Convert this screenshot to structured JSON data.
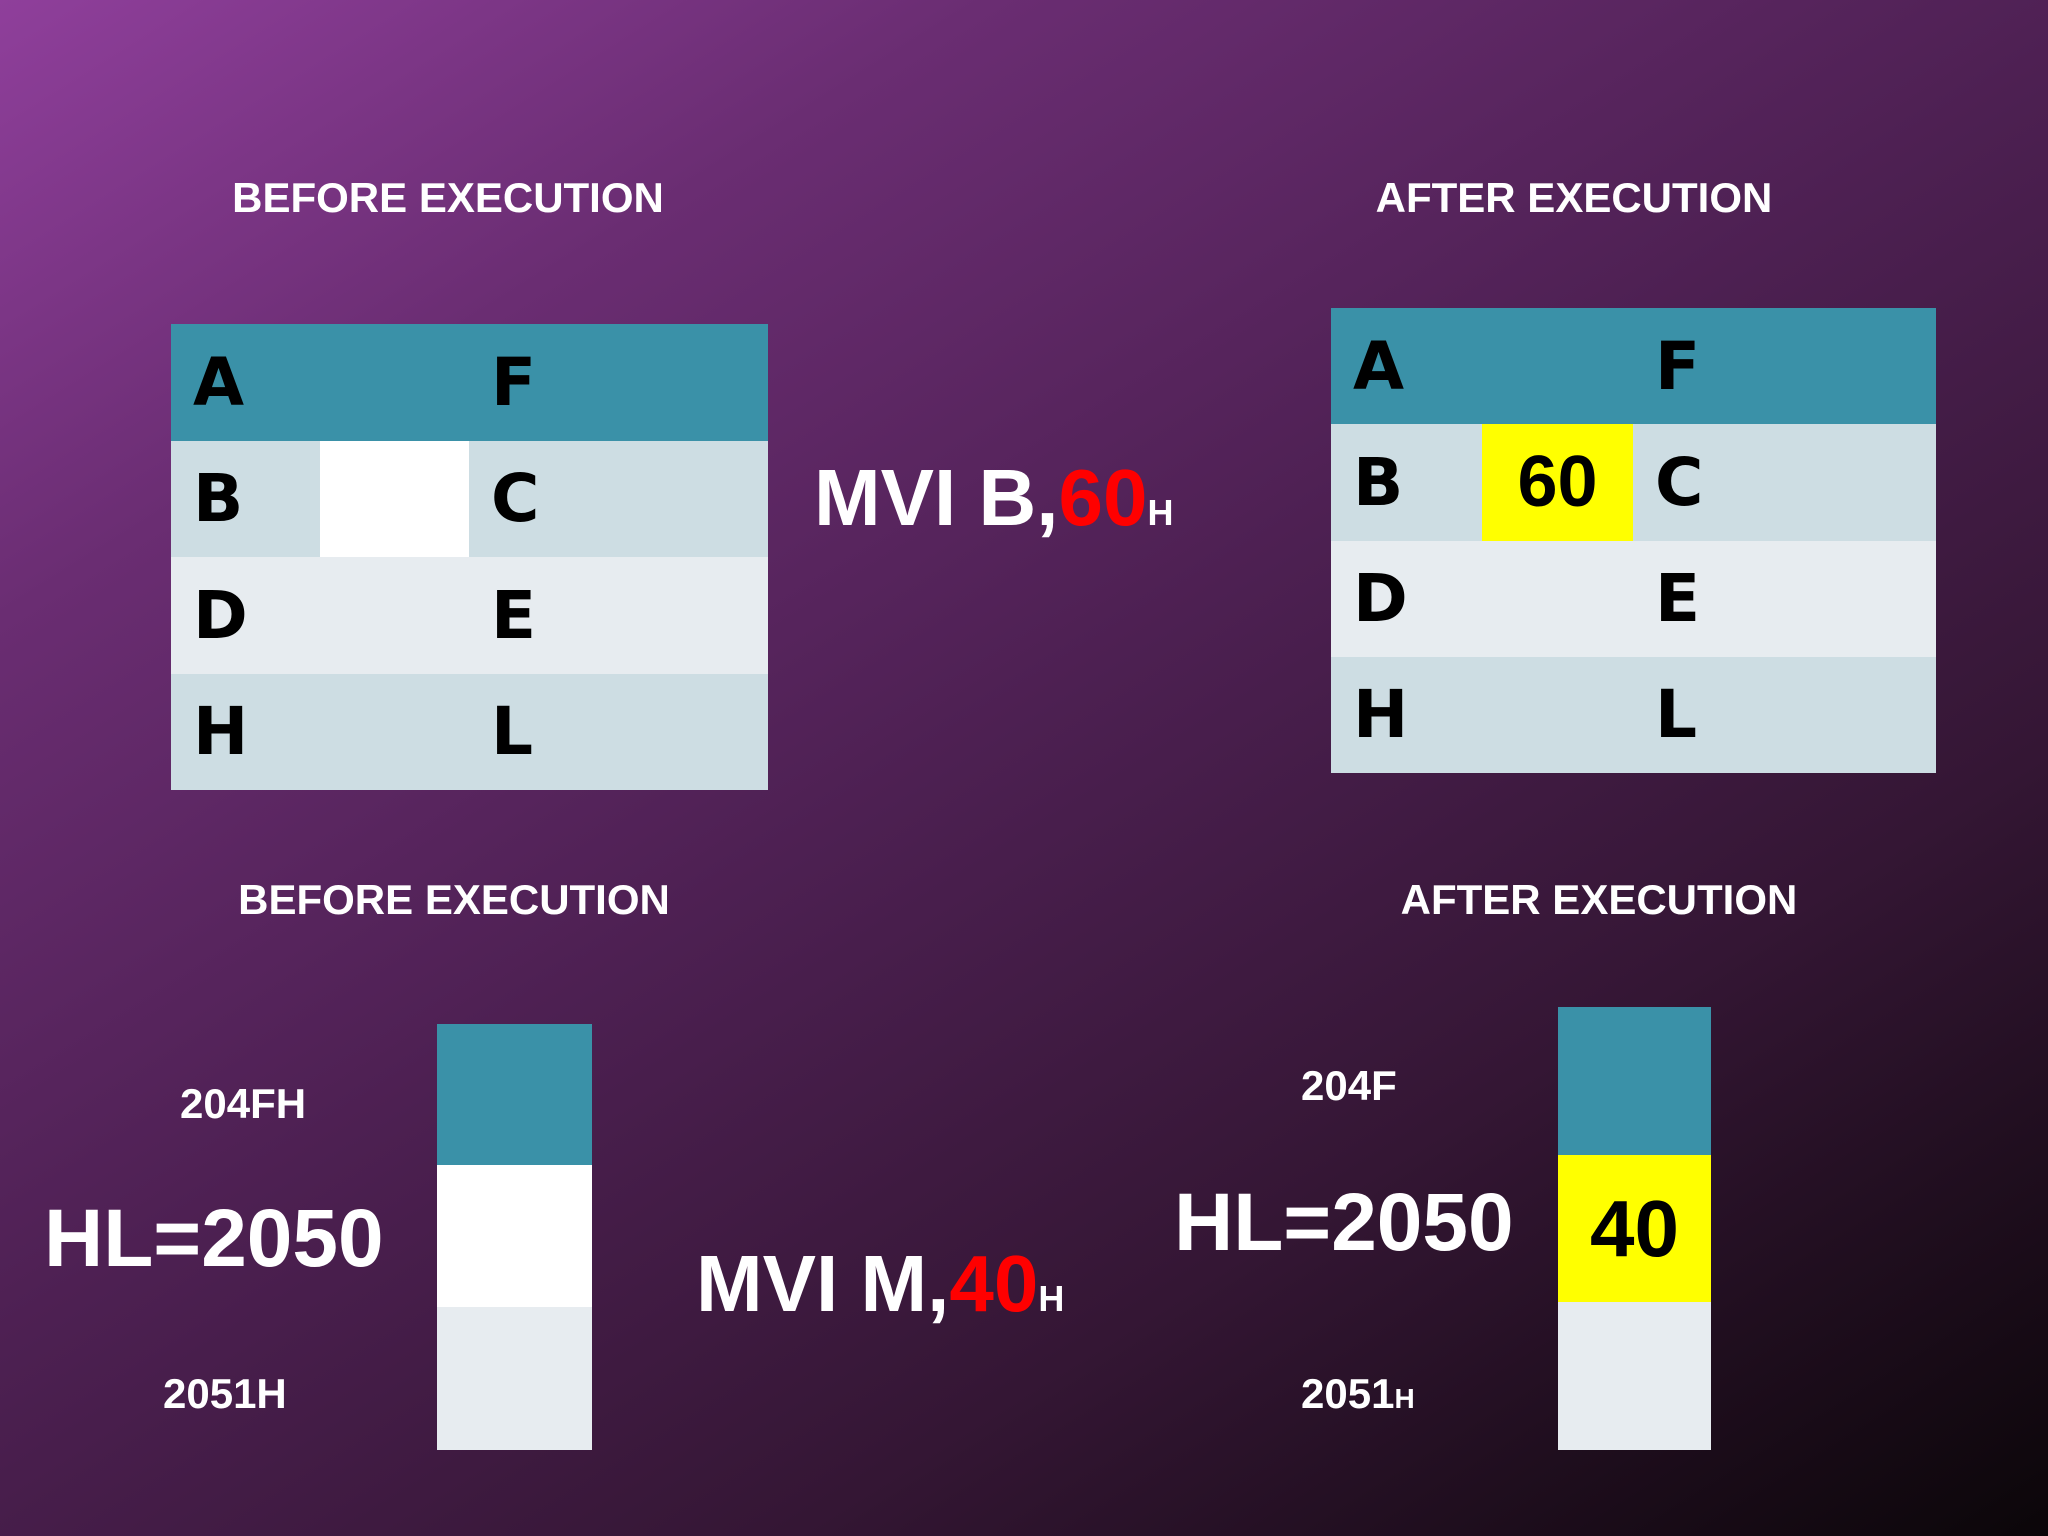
{
  "register_before": {
    "heading": "BEFORE EXECUTION",
    "rows": [
      {
        "left": "A",
        "right": "F"
      },
      {
        "left": "B",
        "right": "C"
      },
      {
        "left": "D",
        "right": "E"
      },
      {
        "left": "H",
        "right": "L"
      }
    ]
  },
  "instruction_1": {
    "text": "MVI B,",
    "operand": "60",
    "suffix": "H"
  },
  "register_after": {
    "heading": "AFTER EXECUTION",
    "rows": [
      {
        "left": "A",
        "right": "F"
      },
      {
        "left": "B",
        "right": "C"
      },
      {
        "left": "D",
        "right": "E"
      },
      {
        "left": "H",
        "right": "L"
      }
    ],
    "b_value": "60"
  },
  "memory_before": {
    "heading": "BEFORE EXECUTION",
    "address_top": "204FH",
    "pointer": "HL=2050",
    "address_bottom": "2051H"
  },
  "instruction_2": {
    "text": "MVI M,",
    "operand": "40",
    "suffix": "H"
  },
  "memory_after": {
    "heading": "AFTER EXECUTION",
    "address_top": "204F",
    "pointer": "HL=2050",
    "address_bottom": "2051",
    "address_bottom_suffix": "H",
    "value": "40"
  }
}
